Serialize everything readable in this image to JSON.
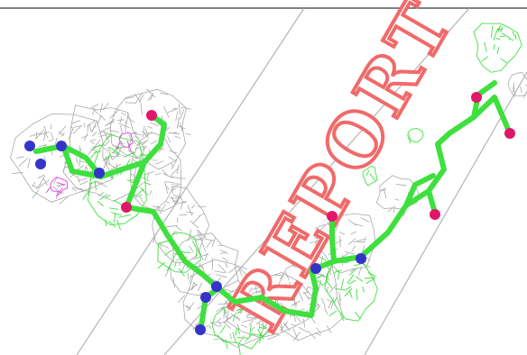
{
  "watermark": {
    "text": "REPORT",
    "color": "#f06a6a"
  },
  "colors": {
    "background": "#ffffff",
    "frame_line": "#000000",
    "slab_lines": "#b4b4b4",
    "density_mesh_gray": "#a9a9a9",
    "difference_mesh_green": "#3fe03f",
    "difference_mesh_magenta": "#e23ee2",
    "carbon_green": "#3ee03e",
    "nitrogen_blue": "#3434c8",
    "oxygen_red": "#e0186a"
  },
  "icons": {
    "mesh_gray": "electron-density-mesh",
    "mesh_green": "positive-difference-mesh",
    "mesh_magenta": "negative-difference-mesh",
    "molecule": "ligand-stick-model"
  }
}
